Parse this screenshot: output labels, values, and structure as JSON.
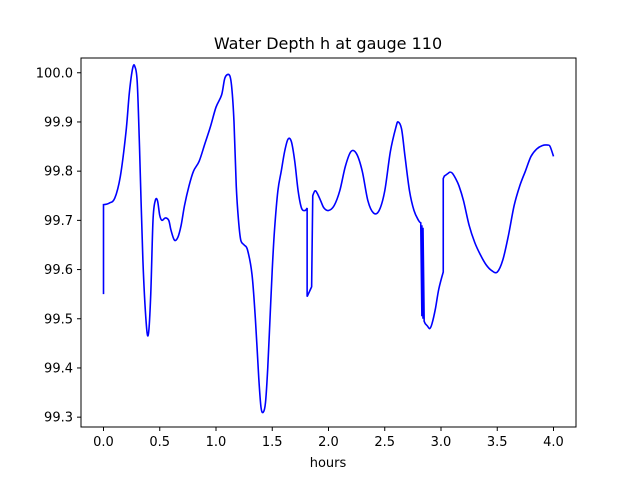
{
  "chart_data": {
    "type": "line",
    "title": "Water Depth h at gauge 110",
    "xlabel": "hours",
    "ylabel": "",
    "xlim": [
      -0.2,
      4.2
    ],
    "ylim": [
      99.28,
      100.03
    ],
    "xticks": [
      0.0,
      0.5,
      1.0,
      1.5,
      2.0,
      2.5,
      3.0,
      3.5,
      4.0
    ],
    "xtick_labels": [
      "0.0",
      "0.5",
      "1.0",
      "1.5",
      "2.0",
      "2.5",
      "3.0",
      "3.5",
      "4.0"
    ],
    "yticks": [
      99.3,
      99.4,
      99.5,
      99.6,
      99.7,
      99.8,
      99.9,
      100.0
    ],
    "ytick_labels": [
      "99.3",
      "99.4",
      "99.5",
      "99.6",
      "99.7",
      "99.8",
      "99.9",
      "100.0"
    ],
    "grid": false,
    "line_color": "#0000ff",
    "series": [
      {
        "name": "",
        "x": [
          0.0,
          0.0,
          0.05,
          0.1,
          0.15,
          0.2,
          0.23,
          0.26,
          0.28,
          0.3,
          0.32,
          0.35,
          0.38,
          0.4,
          0.42,
          0.44,
          0.46,
          0.48,
          0.5,
          0.52,
          0.55,
          0.58,
          0.6,
          0.63,
          0.66,
          0.69,
          0.72,
          0.76,
          0.8,
          0.85,
          0.9,
          0.95,
          1.0,
          1.05,
          1.08,
          1.12,
          1.14,
          1.16,
          1.18,
          1.2,
          1.22,
          1.25,
          1.28,
          1.32,
          1.35,
          1.38,
          1.4,
          1.42,
          1.44,
          1.46,
          1.48,
          1.5,
          1.52,
          1.55,
          1.58,
          1.61,
          1.64,
          1.67,
          1.7,
          1.73,
          1.76,
          1.79,
          1.81,
          1.81,
          1.82,
          1.84,
          1.85,
          1.86,
          1.88,
          1.9,
          1.93,
          1.96,
          2.0,
          2.05,
          2.1,
          2.15,
          2.2,
          2.25,
          2.3,
          2.35,
          2.4,
          2.45,
          2.5,
          2.55,
          2.6,
          2.62,
          2.65,
          2.68,
          2.72,
          2.76,
          2.8,
          2.82,
          2.83,
          2.83,
          2.84,
          2.84,
          2.85,
          2.85,
          2.86,
          2.88,
          2.9,
          2.92,
          2.95,
          2.98,
          3.02,
          3.02,
          3.03,
          3.06,
          3.08,
          3.1,
          3.13,
          3.16,
          3.2,
          3.25,
          3.3,
          3.35,
          3.4,
          3.45,
          3.5,
          3.55,
          3.6,
          3.65,
          3.7,
          3.75,
          3.8,
          3.85,
          3.9,
          3.95,
          3.97,
          4.0
        ],
        "y": [
          99.55,
          99.732,
          99.735,
          99.745,
          99.79,
          99.88,
          99.96,
          100.01,
          100.012,
          99.98,
          99.85,
          99.62,
          99.49,
          99.47,
          99.55,
          99.7,
          99.74,
          99.74,
          99.71,
          99.7,
          99.705,
          99.7,
          99.68,
          99.66,
          99.665,
          99.69,
          99.73,
          99.77,
          99.8,
          99.82,
          99.855,
          99.89,
          99.93,
          99.955,
          99.99,
          99.995,
          99.97,
          99.9,
          99.77,
          99.7,
          99.66,
          99.65,
          99.64,
          99.59,
          99.5,
          99.38,
          99.32,
          99.31,
          99.33,
          99.4,
          99.5,
          99.6,
          99.68,
          99.76,
          99.8,
          99.84,
          99.865,
          99.86,
          99.82,
          99.76,
          99.725,
          99.72,
          99.725,
          99.545,
          99.55,
          99.56,
          99.565,
          99.75,
          99.76,
          99.755,
          99.74,
          99.725,
          99.72,
          99.73,
          99.76,
          99.81,
          99.84,
          99.835,
          99.8,
          99.74,
          99.715,
          99.72,
          99.76,
          99.84,
          99.89,
          99.9,
          99.885,
          99.83,
          99.76,
          99.72,
          99.7,
          99.695,
          99.505,
          99.69,
          99.5,
          99.685,
          99.5,
          99.495,
          99.49,
          99.485,
          99.48,
          99.49,
          99.52,
          99.56,
          99.595,
          99.785,
          99.79,
          99.795,
          99.798,
          99.796,
          99.785,
          99.77,
          99.74,
          99.69,
          99.655,
          99.63,
          99.61,
          99.598,
          99.595,
          99.62,
          99.67,
          99.73,
          99.77,
          99.8,
          99.83,
          99.845,
          99.852,
          99.853,
          99.85,
          99.83
        ]
      }
    ]
  }
}
